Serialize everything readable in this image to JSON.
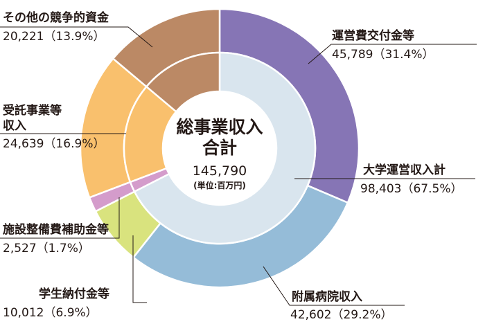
{
  "chart_data": {
    "type": "donut",
    "center": {
      "title_line1": "総事業収入",
      "title_line2": "合計",
      "total": "145,790",
      "unit": "(単位:百万円)"
    },
    "outer_ring": [
      {
        "name": "運営費交付金等",
        "value": 45789,
        "display": "45,789（31.4%）",
        "color": "#8675b5"
      },
      {
        "name": "附属病院収入",
        "value": 42602,
        "display": "42,602（29.2%）",
        "color": "#95bcd8"
      },
      {
        "name": "学生納付金等",
        "value": 10012,
        "display": "10,012（6.9%）",
        "color": "#d9e37e"
      },
      {
        "name": "施設整備費補助金等",
        "value": 2527,
        "display": "2,527（1.7%）",
        "color": "#d49ccb"
      },
      {
        "name_lines": [
          "受託事業等",
          "収入"
        ],
        "value": 24639,
        "display": "24,639（16.9%）",
        "color": "#f9c06d"
      },
      {
        "name": "その他の競争的資金",
        "value": 20221,
        "display": "20,221（13.9%）",
        "color": "#bb8965"
      }
    ],
    "inner_ring": [
      {
        "name": "大学運営収入計",
        "value": 98403,
        "display": "98,403（67.5%）",
        "color": "#d9e5ee"
      },
      {
        "name": "施設整備費補助金等",
        "value": 2527,
        "color": "#d49ccb"
      },
      {
        "name": "受託事業等収入",
        "value": 24639,
        "color": "#f9c06d"
      },
      {
        "name": "その他の競争的資金",
        "value": 20221,
        "color": "#bb8965"
      }
    ]
  }
}
